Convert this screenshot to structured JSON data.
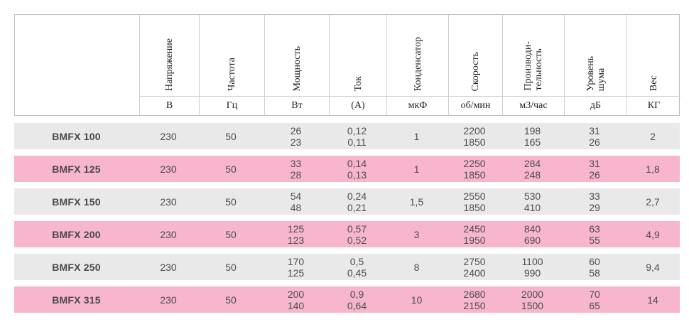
{
  "colors": {
    "pink_row": "#f7b5ce",
    "gray_row": "#e9e9e9",
    "border_outer": "#bdbdbd",
    "border_inner": "#cfcfcf"
  },
  "table": {
    "columns": [
      {
        "label": "",
        "unit": ""
      },
      {
        "label": "Напряжение",
        "unit": "В"
      },
      {
        "label": "Частота",
        "unit": "Гц"
      },
      {
        "label": "Мощность",
        "unit": "Вт"
      },
      {
        "label": "Ток",
        "unit": "(А)"
      },
      {
        "label": "Конденсатор",
        "unit": "мкФ"
      },
      {
        "label": "Скорость",
        "unit": "об/мин"
      },
      {
        "label": "Производи-\nтельность",
        "unit": "м3/час"
      },
      {
        "label": "Уровень\nшума",
        "unit": "дБ"
      },
      {
        "label": "Вес",
        "unit": "КГ"
      }
    ],
    "rows": [
      {
        "name": "BMFX 100",
        "cells": [
          "230",
          "50",
          "26\n23",
          "0,12\n0,11",
          "1",
          "2200\n1850",
          "198\n165",
          "31\n26",
          "2"
        ]
      },
      {
        "name": "BMFX 125",
        "cells": [
          "230",
          "50",
          "33\n28",
          "0,14\n0,13",
          "1",
          "2250\n1850",
          "284\n248",
          "31\n26",
          "1,8"
        ]
      },
      {
        "name": "BMFX 150",
        "cells": [
          "230",
          "50",
          "54\n48",
          "0,24\n0,21",
          "1,5",
          "2550\n1850",
          "530\n410",
          "33\n29",
          "2,7"
        ]
      },
      {
        "name": "BMFX 200",
        "cells": [
          "230",
          "50",
          "125\n123",
          "0,57\n0,52",
          "3",
          "2450\n1950",
          "840\n690",
          "63\n55",
          "4,9"
        ]
      },
      {
        "name": "BMFX 250",
        "cells": [
          "230",
          "50",
          "170\n125",
          "0,5\n0,45",
          "8",
          "2750\n2400",
          "1100\n990",
          "60\n58",
          "9,4"
        ]
      },
      {
        "name": "BMFX 315",
        "cells": [
          "230",
          "50",
          "200\n140",
          "0,9\n0,64",
          "10",
          "2680\n2150",
          "2000\n1500",
          "70\n65",
          "14"
        ]
      }
    ]
  }
}
